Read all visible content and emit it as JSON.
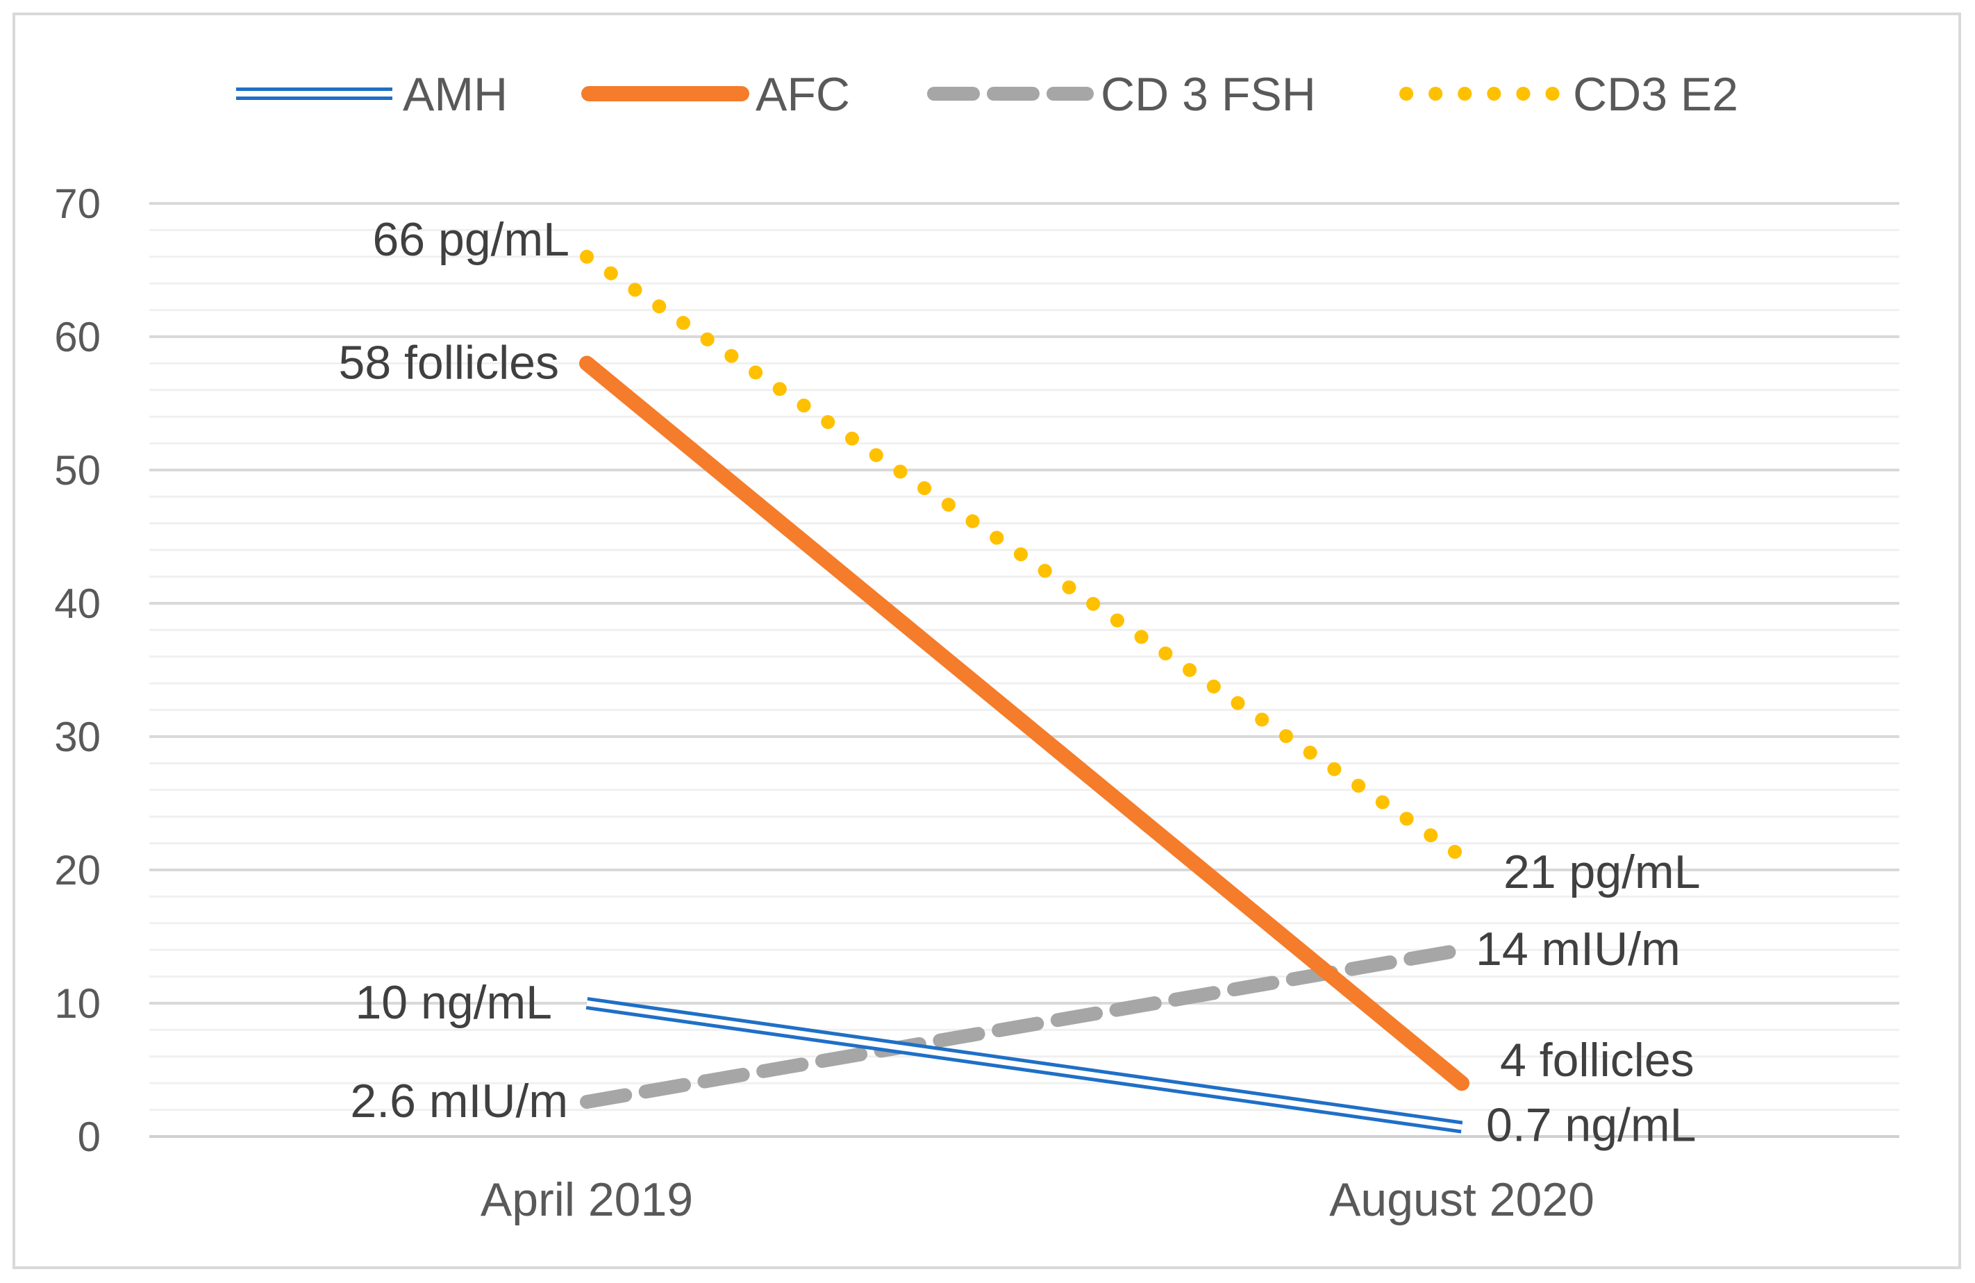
{
  "chart_data": {
    "type": "line",
    "title": "",
    "xlabel": "",
    "ylabel": "",
    "categories": [
      "April 2019",
      "August 2020"
    ],
    "ylim": [
      0,
      70
    ],
    "yticks": [
      0,
      10,
      20,
      30,
      40,
      50,
      60,
      70
    ],
    "ytick_labels": [
      "0",
      "10",
      "20",
      "30",
      "40",
      "50",
      "60",
      "70"
    ],
    "grid": true,
    "legend_position": "top",
    "series": [
      {
        "name": "AMH",
        "values": [
          10,
          0.7
        ],
        "color": "#1f6fc6",
        "style": "double",
        "labels": [
          "10 ng/mL",
          "0.7 ng/mL"
        ]
      },
      {
        "name": "AFC",
        "values": [
          58,
          4
        ],
        "color": "#f47c2a",
        "style": "solid",
        "labels": [
          "58 follicles",
          "4 follicles"
        ]
      },
      {
        "name": "CD 3 FSH",
        "values": [
          2.6,
          14
        ],
        "color": "#a6a6a6",
        "style": "dashed",
        "labels": [
          "2.6 mIU/m",
          "14 mIU/m"
        ]
      },
      {
        "name": "CD3 E2",
        "values": [
          66,
          21
        ],
        "color": "#ffc000",
        "style": "dotted",
        "labels": [
          "66 pg/mL",
          "21 pg/mL"
        ]
      }
    ]
  }
}
